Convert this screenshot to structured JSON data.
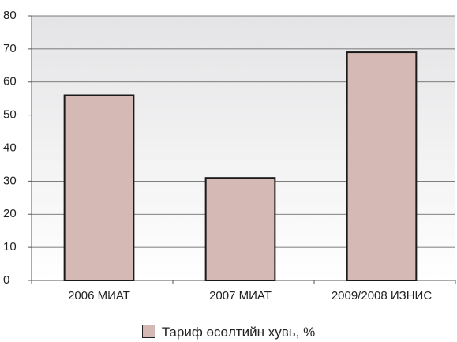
{
  "chart_data": {
    "type": "bar",
    "categories": [
      "2006 МИАТ",
      "2007 МИАТ",
      "2009/2008 ИЗНИС"
    ],
    "series": [
      {
        "name": "Тариф өсөлтийн хувь, %",
        "color": "#d4b9b5",
        "values": [
          56,
          31,
          69
        ]
      }
    ],
    "ylim": [
      0,
      80
    ],
    "yticks": [
      0,
      10,
      20,
      30,
      40,
      50,
      60,
      70,
      80
    ],
    "grid": true
  }
}
